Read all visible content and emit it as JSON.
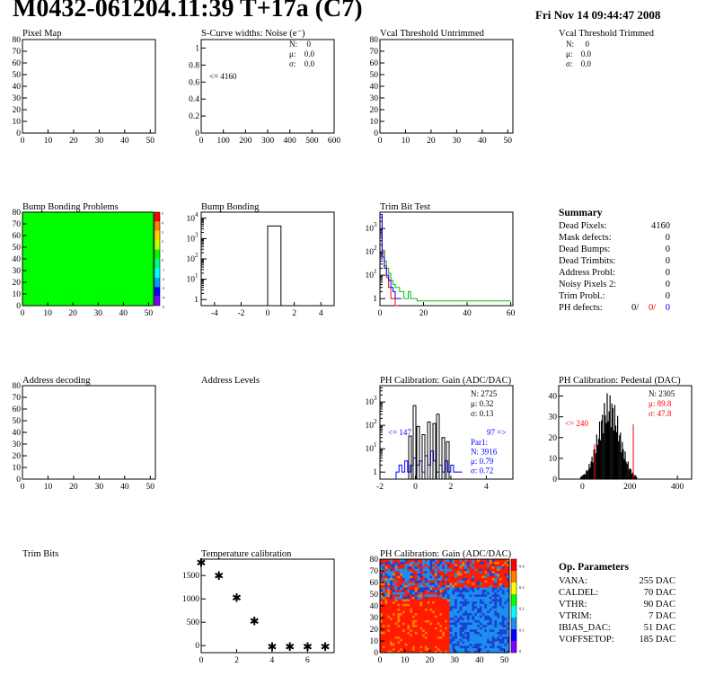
{
  "header": {
    "title": "M0432-061204.11:39 T+17a (C7)",
    "date": "Fri Nov 14 09:44:47 2008"
  },
  "colors": {
    "green": "#00ff00",
    "red": "#ff0000",
    "blue": "#0000ff",
    "light_blue": "#1b8ff0",
    "black": "#000000"
  },
  "panels": [
    {
      "id": "pixel-map",
      "title": "Pixel Map"
    },
    {
      "id": "scurve",
      "title": "S-Curve widths: Noise (e⁻)",
      "stats": [
        "N:",
        "0",
        "μ:",
        "0.0",
        "σ:",
        "0.0"
      ],
      "underflow": "<= 4160"
    },
    {
      "id": "vcal-untrimmed",
      "title": "Vcal Threshold Untrimmed"
    },
    {
      "id": "vcal-trimmed",
      "title": "Vcal Threshold Trimmed",
      "stats": [
        "N:",
        "0",
        "μ:",
        "0.0",
        "σ:",
        "0.0"
      ]
    },
    {
      "id": "bump-problems",
      "title": "Bump Bonding Problems"
    },
    {
      "id": "bump-bonding",
      "title": "Bump Bonding"
    },
    {
      "id": "trim-bit-test",
      "title": "Trim Bit Test"
    },
    {
      "id": "address-decoding",
      "title": "Address decoding"
    },
    {
      "id": "address-levels",
      "title": "Address Levels"
    },
    {
      "id": "ph-gain",
      "title": "PH Calibration: Gain (ADC/DAC)",
      "stats": [
        "N: 2725",
        "μ: 0.32",
        "σ: 0.13"
      ],
      "under": "<= 147",
      "over": "97 =>",
      "par": [
        "Par1:",
        "N: 3916",
        "μ: 0.79",
        "σ: 0.72"
      ]
    },
    {
      "id": "ph-pedestal",
      "title": "PH Calibration: Pedestal (DAC)",
      "stats": [
        "N: 2305",
        "μ: 89.8",
        "σ: 47.8"
      ],
      "under": "<= 240"
    },
    {
      "id": "trim-bits",
      "title": "Trim Bits"
    },
    {
      "id": "temperature",
      "title": "Temperature calibration"
    },
    {
      "id": "ph-gain-map",
      "title": "PH Calibration: Gain (ADC/DAC)"
    }
  ],
  "summary": {
    "title": "Summary",
    "rows": [
      {
        "label": "Dead Pixels:",
        "value": "4160"
      },
      {
        "label": "Mask defects:",
        "value": "0"
      },
      {
        "label": "Dead Bumps:",
        "value": "0"
      },
      {
        "label": "Dead Trimbits:",
        "value": "0"
      },
      {
        "label": "Address Probl:",
        "value": "0"
      },
      {
        "label": "Noisy Pixels 2:",
        "value": "0"
      },
      {
        "label": "Trim Probl.:",
        "value": "0"
      }
    ],
    "ph_defects": {
      "label": "PH defects:",
      "v1": "0/",
      "v2": "0/",
      "v3": "0"
    }
  },
  "op_parameters": {
    "title": "Op. Parameters",
    "rows": [
      {
        "label": "VANA:",
        "value": "255 DAC"
      },
      {
        "label": "CALDEL:",
        "value": "70 DAC"
      },
      {
        "label": "VTHR:",
        "value": "90 DAC"
      },
      {
        "label": "VTRIM:",
        "value": "7 DAC"
      },
      {
        "label": "IBIAS_DAC:",
        "value": "51 DAC"
      },
      {
        "label": "VOFFSETOP:",
        "value": "185 DAC"
      }
    ]
  },
  "chart_data": [
    {
      "id": "pixel-map",
      "type": "heatmap",
      "title": "Pixel Map",
      "xlim": [
        0,
        52
      ],
      "ylim": [
        0,
        80
      ],
      "xticks": [
        0,
        10,
        20,
        30,
        40,
        50
      ],
      "yticks": [
        0,
        10,
        20,
        30,
        40,
        50,
        60,
        70,
        80
      ],
      "values": []
    },
    {
      "id": "scurve",
      "type": "bar",
      "title": "S-Curve widths: Noise (e⁻)",
      "xlim": [
        0,
        600
      ],
      "ylim": [
        0,
        1.1
      ],
      "xticks": [
        0,
        100,
        200,
        300,
        400,
        500,
        600
      ],
      "yticks": [
        0,
        0.2,
        0.4,
        0.6,
        0.8,
        1
      ],
      "values": []
    },
    {
      "id": "vcal-untrimmed",
      "type": "heatmap",
      "title": "Vcal Threshold Untrimmed",
      "xlim": [
        0,
        52
      ],
      "ylim": [
        0,
        80
      ],
      "xticks": [
        0,
        10,
        20,
        30,
        40,
        50
      ],
      "yticks": [
        0,
        10,
        20,
        30,
        40,
        50,
        60,
        70,
        80
      ],
      "values": []
    },
    {
      "id": "bump-problems",
      "type": "heatmap",
      "title": "Bump Bonding Problems",
      "xlim": [
        0,
        52
      ],
      "ylim": [
        0,
        80
      ],
      "xticks": [
        0,
        10,
        20,
        30,
        40,
        50
      ],
      "yticks": [
        0,
        10,
        20,
        30,
        40,
        50,
        60,
        70,
        80
      ],
      "fill": "uniform",
      "palette": [
        "#ff0000",
        "#ff8000",
        "#ffd000",
        "#c0ff00",
        "#00ff00",
        "#00ff80",
        "#00ffff",
        "#00a0ff",
        "#0000ff",
        "#8000ff"
      ],
      "palette_ticks": [
        "5",
        "4",
        "3",
        "2",
        "1",
        "0",
        "-1",
        "-2",
        "-3",
        "-4",
        "-5"
      ]
    },
    {
      "id": "bump-bonding",
      "type": "bar",
      "title": "Bump Bonding",
      "log_y": true,
      "xlim": [
        -5,
        5
      ],
      "ylim": [
        0.5,
        20000
      ],
      "xticks": [
        -4,
        -2,
        0,
        2,
        4
      ],
      "bins": [
        {
          "x0": 0,
          "x1": 1,
          "y": 4160
        }
      ]
    },
    {
      "id": "trim-bit-test",
      "type": "line",
      "title": "Trim Bit Test",
      "log_y": true,
      "xlim": [
        0,
        61
      ],
      "ylim": [
        0.5,
        5000
      ],
      "xticks": [
        0,
        20,
        40,
        60
      ],
      "binwidth": 1,
      "series": [
        {
          "color": "#00c000",
          "values": [
            4000,
            120,
            40,
            20,
            12,
            6,
            4,
            3,
            3,
            2,
            2,
            1,
            1,
            2,
            1,
            1,
            1,
            0.8,
            0.8,
            0.8,
            0.8,
            0.8,
            0.8,
            0.8,
            0.8,
            0.8,
            0.8,
            0.8,
            0.8,
            0.8,
            0.8,
            0.8,
            0.8,
            0.8,
            0.8,
            0.8,
            0.8,
            0.8,
            0.8,
            0.8,
            0.8,
            0.8,
            0.8,
            0.8,
            0.8,
            0.8,
            0.8,
            0.8,
            0.8,
            0.8,
            0.8,
            0.8,
            0.8,
            0.8,
            0.8,
            0.8,
            0.8,
            0.8,
            0.8,
            0.8
          ]
        },
        {
          "color": "#ff0000",
          "values": [
            4000,
            80,
            25,
            8,
            3,
            1,
            1,
            0
          ]
        },
        {
          "color": "#0000ff",
          "values": [
            4000,
            60,
            20,
            10,
            6,
            3,
            2,
            1,
            1,
            1
          ]
        }
      ]
    },
    {
      "id": "address-decoding",
      "type": "heatmap",
      "title": "Address decoding",
      "xlim": [
        0,
        52
      ],
      "ylim": [
        0,
        80
      ],
      "xticks": [
        0,
        10,
        20,
        30,
        40,
        50
      ],
      "yticks": [
        0,
        10,
        20,
        30,
        40,
        50,
        60,
        70,
        80
      ],
      "values": []
    },
    {
      "id": "ph-gain",
      "type": "bar",
      "title": "PH Calibration: Gain (ADC/DAC)",
      "log_y": true,
      "xlim": [
        -2,
        5.5
      ],
      "ylim": [
        0.5,
        5000
      ],
      "xticks": [
        -2,
        0,
        2,
        4
      ],
      "yticks": [
        1,
        10,
        100,
        1000
      ]
    },
    {
      "id": "ph-pedestal",
      "type": "bar",
      "title": "PH Calibration: Pedestal (DAC)",
      "xlim": [
        -100,
        460
      ],
      "ylim": [
        0,
        45
      ],
      "xticks": [
        0,
        200,
        400
      ],
      "yticks": [
        0,
        10,
        20,
        30,
        40
      ]
    },
    {
      "id": "temperature",
      "type": "scatter",
      "title": "Temperature calibration",
      "xlim": [
        0,
        7.5
      ],
      "ylim": [
        -150,
        1850
      ],
      "xticks": [
        0,
        2,
        4,
        6
      ],
      "yticks": [
        0,
        500,
        1000,
        1500
      ],
      "x": [
        0,
        1,
        2,
        3,
        4,
        5,
        6,
        7
      ],
      "y": [
        1780,
        1500,
        1030,
        530,
        -20,
        -20,
        -20,
        -20
      ]
    },
    {
      "id": "ph-gain-map",
      "type": "heatmap",
      "title": "PH Calibration: Gain (ADC/DAC)",
      "xlim": [
        0,
        52
      ],
      "ylim": [
        0,
        80
      ],
      "xticks": [
        0,
        10,
        20,
        30,
        40,
        50
      ],
      "yticks": [
        0,
        10,
        20,
        30,
        40,
        50,
        60,
        70,
        80
      ],
      "palette": [
        "#8000ff",
        "#0000ff",
        "#1b8ff0",
        "#00ffff",
        "#00ff00",
        "#ffff00",
        "#ff8000",
        "#ff0000"
      ],
      "palette_ticks": [
        "0",
        "0.1",
        "0.2",
        "0.3",
        "0.4"
      ]
    }
  ]
}
